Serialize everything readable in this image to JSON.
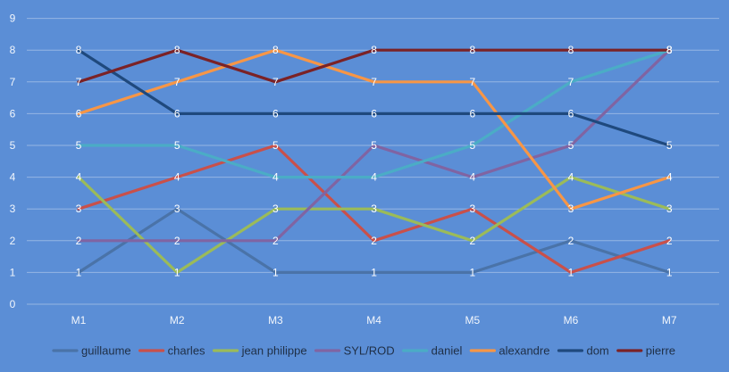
{
  "chart_data": {
    "type": "line",
    "categories": [
      "M1",
      "M2",
      "M3",
      "M4",
      "M5",
      "M6",
      "M7"
    ],
    "ylim": [
      0,
      9
    ],
    "yticks": [
      0,
      1,
      2,
      3,
      4,
      5,
      6,
      7,
      8,
      9
    ],
    "grid": true,
    "legend": "bottom",
    "data_labels": true,
    "series": [
      {
        "name": "guillaume",
        "color": "#4a73a8",
        "values": [
          1,
          3,
          1,
          1,
          1,
          2,
          1
        ]
      },
      {
        "name": "charles",
        "color": "#c9504a",
        "values": [
          3,
          4,
          5,
          2,
          3,
          1,
          2
        ]
      },
      {
        "name": "jean philippe",
        "color": "#9bbb59",
        "values": [
          4,
          1,
          3,
          3,
          2,
          4,
          3
        ]
      },
      {
        "name": "SYL/ROD",
        "color": "#8064a2",
        "values": [
          2,
          2,
          2,
          5,
          4,
          5,
          8
        ]
      },
      {
        "name": "daniel",
        "color": "#4bacc6",
        "values": [
          5,
          5,
          4,
          4,
          5,
          7,
          8
        ]
      },
      {
        "name": "alexandre",
        "color": "#f79646",
        "values": [
          6,
          7,
          8,
          7,
          7,
          3,
          4
        ]
      },
      {
        "name": "dom",
        "color": "#1f497d",
        "values": [
          8,
          6,
          6,
          6,
          6,
          6,
          5
        ]
      },
      {
        "name": "pierre",
        "color": "#7b2226",
        "values": [
          7,
          8,
          7,
          8,
          8,
          8,
          8
        ]
      }
    ]
  }
}
